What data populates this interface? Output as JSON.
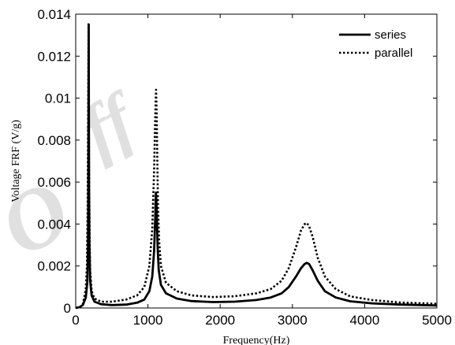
{
  "chart_data": {
    "type": "line",
    "title": "",
    "xlabel": "Frequency(Hz)",
    "ylabel": "Voltage FRF (V/g)",
    "xlim": [
      0,
      5000
    ],
    "ylim": [
      0,
      0.014
    ],
    "xticks": [
      0,
      1000,
      2000,
      3000,
      4000,
      5000
    ],
    "xtick_labels": [
      "0",
      "1000",
      "2000",
      "3000",
      "4000",
      "5000"
    ],
    "yticks": [
      0,
      0.002,
      0.004,
      0.006,
      0.008,
      0.01,
      0.012,
      0.014
    ],
    "ytick_labels": [
      "0",
      "0.002",
      "0.004",
      "0.006",
      "0.008",
      "0.01",
      "0.012",
      "0.014"
    ],
    "grid": false,
    "legend_position": "top-right",
    "series": [
      {
        "name": "series",
        "style": "solid",
        "color": "#000000",
        "x": [
          0,
          60,
          100,
          140,
          160,
          170,
          175,
          180,
          185,
          190,
          200,
          220,
          260,
          350,
          500,
          700,
          850,
          950,
          1020,
          1060,
          1085,
          1100,
          1110,
          1118,
          1125,
          1135,
          1150,
          1180,
          1250,
          1400,
          1600,
          1900,
          2200,
          2500,
          2700,
          2850,
          2950,
          3050,
          3120,
          3170,
          3200,
          3230,
          3280,
          3350,
          3450,
          3600,
          3800,
          4100,
          4500,
          5000
        ],
        "y": [
          0.0,
          5e-05,
          0.00015,
          0.0005,
          0.0012,
          0.0028,
          0.0055,
          0.0135,
          0.006,
          0.003,
          0.0013,
          0.0006,
          0.0003,
          0.00018,
          0.00014,
          0.00016,
          0.00025,
          0.0004,
          0.0008,
          0.0015,
          0.0027,
          0.0042,
          0.0055,
          0.005,
          0.004,
          0.0028,
          0.0018,
          0.0011,
          0.0007,
          0.00045,
          0.00033,
          0.00028,
          0.0003,
          0.00038,
          0.0005,
          0.0007,
          0.001,
          0.0015,
          0.0019,
          0.0021,
          0.00215,
          0.0021,
          0.0018,
          0.0013,
          0.0008,
          0.0005,
          0.00032,
          0.00022,
          0.00016,
          0.00012
        ]
      },
      {
        "name": "parallel",
        "style": "dotted",
        "color": "#000000",
        "x": [
          0,
          60,
          100,
          140,
          155,
          165,
          172,
          178,
          185,
          192,
          200,
          220,
          260,
          350,
          500,
          700,
          850,
          950,
          1020,
          1060,
          1085,
          1100,
          1112,
          1122,
          1130,
          1140,
          1155,
          1180,
          1250,
          1400,
          1600,
          1900,
          2200,
          2500,
          2700,
          2850,
          2950,
          3050,
          3120,
          3170,
          3200,
          3230,
          3280,
          3350,
          3450,
          3600,
          3800,
          4100,
          4500,
          5000
        ],
        "y": [
          0.0,
          5e-05,
          0.0002,
          0.0009,
          0.002,
          0.0046,
          0.009,
          0.0136,
          0.007,
          0.0035,
          0.0018,
          0.0008,
          0.00045,
          0.0003,
          0.0003,
          0.0004,
          0.0006,
          0.001,
          0.002,
          0.0038,
          0.0065,
          0.009,
          0.0104,
          0.009,
          0.007,
          0.0048,
          0.0032,
          0.002,
          0.0012,
          0.0008,
          0.0006,
          0.00052,
          0.00056,
          0.0007,
          0.0009,
          0.0013,
          0.0019,
          0.0029,
          0.0037,
          0.004,
          0.00405,
          0.0039,
          0.0034,
          0.0024,
          0.0015,
          0.0009,
          0.00055,
          0.00038,
          0.00026,
          0.0002
        ]
      }
    ]
  }
}
